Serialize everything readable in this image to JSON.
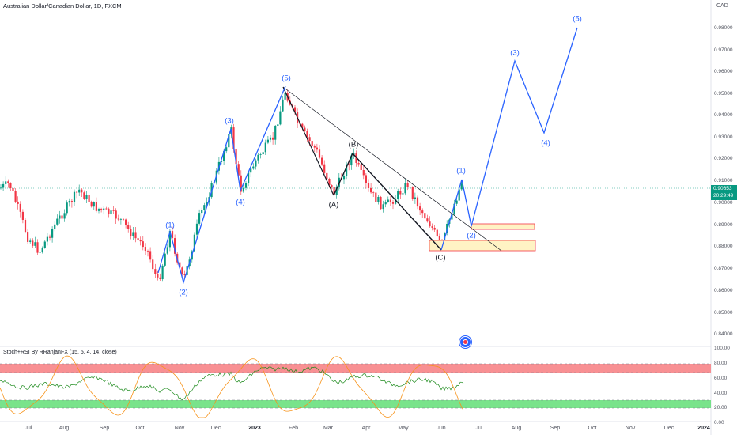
{
  "symbol": {
    "title": "Australian Dollar/Canadian Dollar, 1D, FXCM",
    "currency": "CAD"
  },
  "price_axis": {
    "ticks": [
      "0.98000",
      "0.97000",
      "0.96000",
      "0.95000",
      "0.94000",
      "0.93000",
      "0.92000",
      "0.91000",
      "0.90000",
      "0.89000",
      "0.88000",
      "0.87000",
      "0.86000",
      "0.85000",
      "0.84000"
    ],
    "last_price": "0.90653",
    "countdown": "20:29:49"
  },
  "time_axis": {
    "ticks": [
      {
        "label": "Jul",
        "bold": false
      },
      {
        "label": "Aug",
        "bold": false
      },
      {
        "label": "Sep",
        "bold": false
      },
      {
        "label": "Oct",
        "bold": false
      },
      {
        "label": "Nov",
        "bold": false
      },
      {
        "label": "Dec",
        "bold": false
      },
      {
        "label": "2023",
        "bold": true
      },
      {
        "label": "Feb",
        "bold": false
      },
      {
        "label": "Mar",
        "bold": false
      },
      {
        "label": "Apr",
        "bold": false
      },
      {
        "label": "May",
        "bold": false
      },
      {
        "label": "Jun",
        "bold": false
      },
      {
        "label": "Jul",
        "bold": false
      },
      {
        "label": "Aug",
        "bold": false
      },
      {
        "label": "Sep",
        "bold": false
      },
      {
        "label": "Oct",
        "bold": false
      },
      {
        "label": "Nov",
        "bold": false
      },
      {
        "label": "Dec",
        "bold": false
      },
      {
        "label": "2024",
        "bold": true
      }
    ]
  },
  "indicator": {
    "title": "Stoch+RSI By RRanjanFX (15, 5, 4, 14, close)",
    "ticks": [
      "100.00",
      "80.00",
      "60.00",
      "40.00",
      "20.00",
      "0.00"
    ]
  },
  "wave_labels": [
    {
      "text": "(1)",
      "color": "blue"
    },
    {
      "text": "(2)",
      "color": "blue"
    },
    {
      "text": "(3)",
      "color": "blue"
    },
    {
      "text": "(4)",
      "color": "blue"
    },
    {
      "text": "(5)",
      "color": "blue"
    },
    {
      "text": "(A)",
      "color": "black"
    },
    {
      "text": "(B)",
      "color": "black"
    },
    {
      "text": "(C)",
      "color": "black"
    },
    {
      "text": "(1)",
      "color": "blue"
    },
    {
      "text": "(2)",
      "color": "blue"
    },
    {
      "text": "(3)",
      "color": "blue"
    },
    {
      "text": "(4)",
      "color": "blue"
    },
    {
      "text": "(5)",
      "color": "blue"
    }
  ],
  "colors": {
    "up": "#089981",
    "down": "#f23645",
    "wave_blue": "#2962ff",
    "zone_fill": "#fff3c4",
    "zone_border": "#f23645",
    "overbought_band": "#f77c80",
    "oversold_band": "#4cd964",
    "rsi_line": "#1b8a1b",
    "stoch_line": "#f7931a"
  }
}
